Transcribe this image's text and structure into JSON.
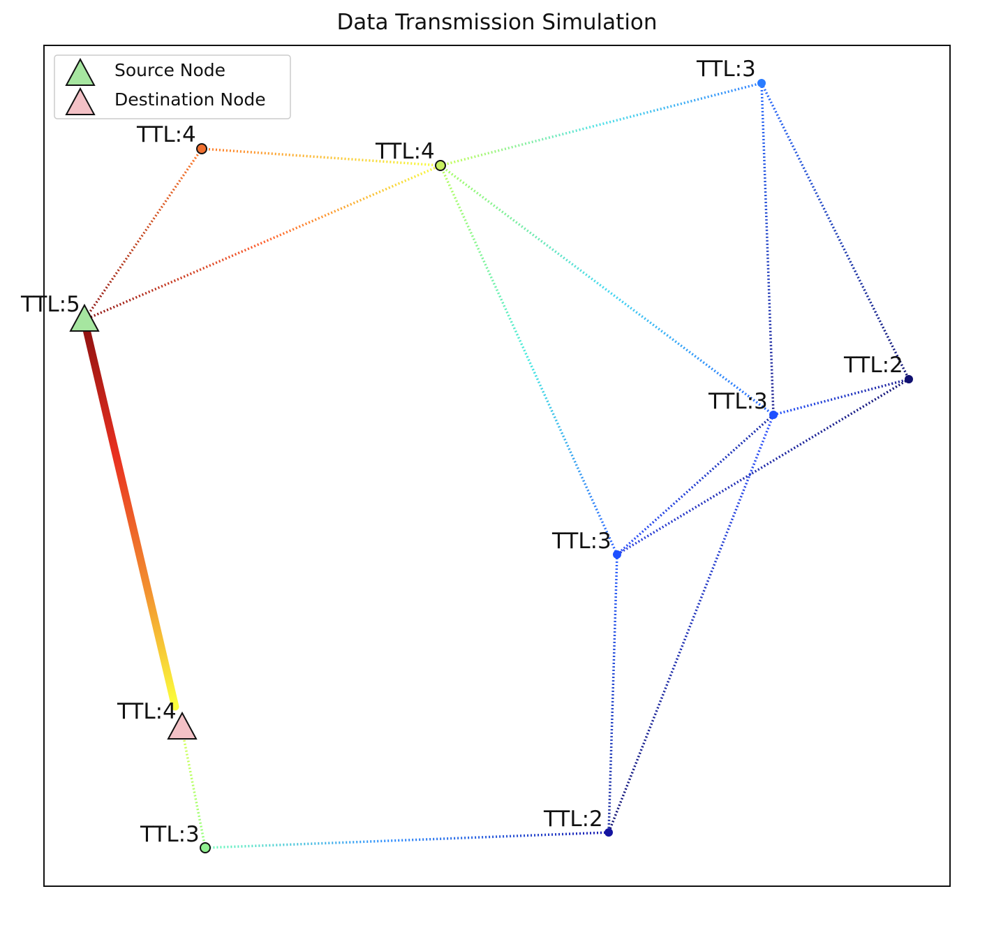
{
  "title": "Data Transmission Simulation",
  "legend": {
    "source": "Source Node",
    "destination": "Destination Node"
  },
  "colors": {
    "source_fill": "#a6e6a0",
    "destination_fill": "#f3c1c6"
  },
  "nodes": [
    {
      "id": "n5",
      "label": "TTL:5",
      "role": "source"
    },
    {
      "id": "n4a",
      "label": "TTL:4"
    },
    {
      "id": "n4b",
      "label": "TTL:4"
    },
    {
      "id": "n3top",
      "label": "TTL:3"
    },
    {
      "id": "n2right",
      "label": "TTL:2"
    },
    {
      "id": "n3mid",
      "label": "TTL:3"
    },
    {
      "id": "n3low",
      "label": "TTL:3"
    },
    {
      "id": "n2bottom",
      "label": "TTL:2"
    },
    {
      "id": "n3bl",
      "label": "TTL:3"
    },
    {
      "id": "n4dest",
      "label": "TTL:4",
      "role": "destination"
    }
  ]
}
